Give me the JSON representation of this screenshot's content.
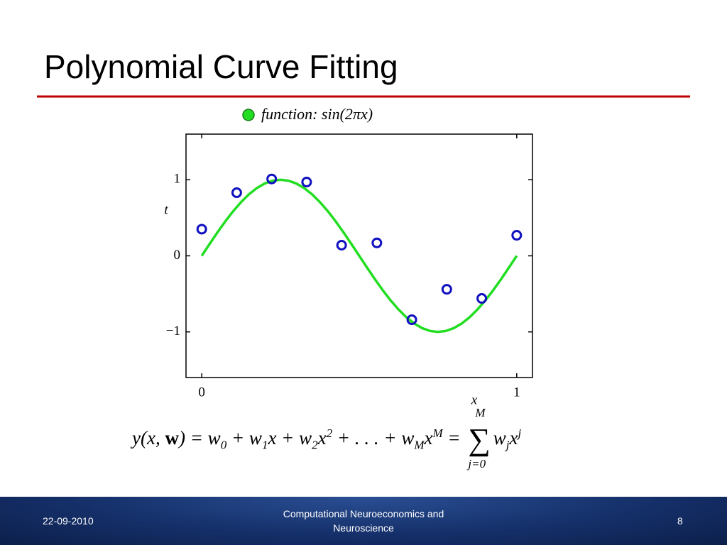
{
  "slide": {
    "title": "Polynomial Curve Fitting",
    "equation": [
      "y(x, ",
      "w",
      ") = w",
      "0",
      " + w",
      "1",
      "x + w",
      "2",
      "x",
      "2",
      " + . . . + w",
      "M",
      "x",
      "M",
      " = ",
      "∑",
      "M",
      "j=0",
      "w",
      "j",
      "x",
      "j"
    ],
    "footer": {
      "date": "22-09-2010",
      "course": "Computational Neuroeconomics and Neuroscience",
      "page": "8"
    }
  },
  "chart_data": {
    "type": "line",
    "xlabel": "x",
    "ylabel": "t",
    "xlim": [
      -0.05,
      1.05
    ],
    "ylim": [
      -1.6,
      1.6
    ],
    "xticks": [
      0,
      1
    ],
    "yticks": [
      {
        "value": -1,
        "label": "−1"
      },
      0,
      1
    ],
    "legend": "top",
    "series": [
      {
        "name": "function: sin(2πx)",
        "color": "#22dd22",
        "type": "line",
        "x": [
          0,
          0.025,
          0.05,
          0.075,
          0.1,
          0.125,
          0.15,
          0.175,
          0.2,
          0.225,
          0.25,
          0.275,
          0.3,
          0.325,
          0.35,
          0.375,
          0.4,
          0.425,
          0.45,
          0.475,
          0.5,
          0.525,
          0.55,
          0.575,
          0.6,
          0.625,
          0.65,
          0.675,
          0.7,
          0.725,
          0.75,
          0.775,
          0.8,
          0.825,
          0.85,
          0.875,
          0.9,
          0.925,
          0.95,
          0.975,
          1
        ],
        "values": [
          0,
          0.156,
          0.309,
          0.454,
          0.588,
          0.707,
          0.809,
          0.891,
          0.951,
          0.988,
          1,
          0.988,
          0.951,
          0.891,
          0.809,
          0.707,
          0.588,
          0.454,
          0.309,
          0.156,
          0,
          -0.156,
          -0.309,
          -0.454,
          -0.588,
          -0.707,
          -0.809,
          -0.891,
          -0.951,
          -0.988,
          -1,
          -0.988,
          -0.951,
          -0.891,
          -0.809,
          -0.707,
          -0.588,
          -0.454,
          -0.309,
          -0.156,
          0
        ]
      },
      {
        "color": "#1010c0",
        "type": "scatter",
        "x": [
          0,
          0.111,
          0.222,
          0.333,
          0.444,
          0.556,
          0.667,
          0.778,
          0.889,
          1
        ],
        "values": [
          0.35,
          0.83,
          1.01,
          0.97,
          0.14,
          0.17,
          -0.84,
          -0.44,
          -0.56,
          0.27
        ]
      }
    ]
  }
}
